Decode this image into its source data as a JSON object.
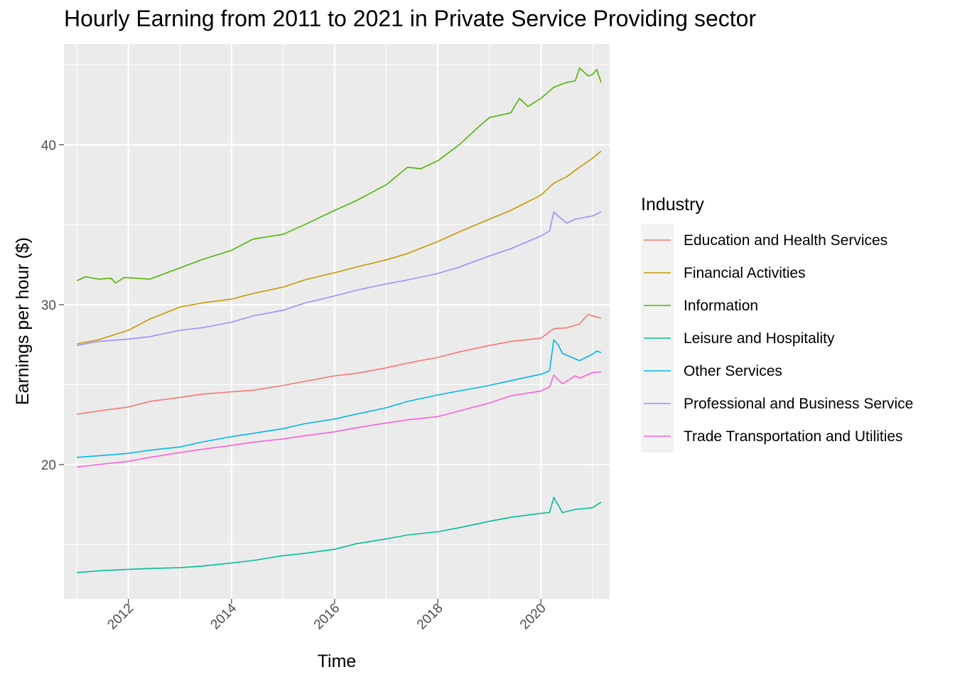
{
  "chart_data": {
    "type": "line",
    "title": "Hourly Earning from 2011 to 2021 in Private Service Providing sector",
    "xlabel": "Time",
    "ylabel": "Earnings per hour ($)",
    "xlim": [
      "2010-10",
      "2021-05"
    ],
    "ylim": [
      11.6,
      46.3
    ],
    "x_ticks": [
      "2012",
      "2014",
      "2016",
      "2018",
      "2020"
    ],
    "y_ticks": [
      "20",
      "30",
      "40"
    ],
    "grid": true,
    "legend": {
      "title": "Industry",
      "position": "right"
    },
    "series": [
      {
        "name": "Education and Health Services",
        "color": "#F8766D",
        "points": [
          [
            "2011-01",
            23.15
          ],
          [
            "2011-06",
            23.35
          ],
          [
            "2012-01",
            23.6
          ],
          [
            "2012-06",
            23.95
          ],
          [
            "2013-01",
            24.2
          ],
          [
            "2013-06",
            24.4
          ],
          [
            "2014-01",
            24.55
          ],
          [
            "2014-06",
            24.65
          ],
          [
            "2015-01",
            24.95
          ],
          [
            "2015-06",
            25.2
          ],
          [
            "2016-01",
            25.55
          ],
          [
            "2016-06",
            25.7
          ],
          [
            "2017-01",
            26.05
          ],
          [
            "2017-06",
            26.35
          ],
          [
            "2018-01",
            26.7
          ],
          [
            "2018-06",
            27.05
          ],
          [
            "2019-01",
            27.45
          ],
          [
            "2019-06",
            27.7
          ],
          [
            "2020-01",
            27.9
          ],
          [
            "2020-04",
            28.5
          ],
          [
            "2020-07",
            28.55
          ],
          [
            "2020-10",
            28.8
          ],
          [
            "2020-12",
            29.4
          ],
          [
            "2021-01",
            29.3
          ],
          [
            "2021-03",
            29.15
          ]
        ]
      },
      {
        "name": "Financial Activities",
        "color": "#C49A00",
        "points": [
          [
            "2011-01",
            27.55
          ],
          [
            "2011-06",
            27.8
          ],
          [
            "2012-01",
            28.4
          ],
          [
            "2012-06",
            29.1
          ],
          [
            "2013-01",
            29.85
          ],
          [
            "2013-06",
            30.1
          ],
          [
            "2014-01",
            30.35
          ],
          [
            "2014-06",
            30.7
          ],
          [
            "2015-01",
            31.1
          ],
          [
            "2015-06",
            31.55
          ],
          [
            "2016-01",
            32.0
          ],
          [
            "2016-06",
            32.35
          ],
          [
            "2017-01",
            32.8
          ],
          [
            "2017-06",
            33.2
          ],
          [
            "2018-01",
            33.95
          ],
          [
            "2018-06",
            34.55
          ],
          [
            "2019-01",
            35.35
          ],
          [
            "2019-06",
            35.9
          ],
          [
            "2020-01",
            36.85
          ],
          [
            "2020-04",
            37.6
          ],
          [
            "2020-07",
            38.0
          ],
          [
            "2020-10",
            38.6
          ],
          [
            "2021-01",
            39.15
          ],
          [
            "2021-03",
            39.6
          ]
        ]
      },
      {
        "name": "Information",
        "color": "#53B400",
        "points": [
          [
            "2011-01",
            31.5
          ],
          [
            "2011-03",
            31.75
          ],
          [
            "2011-06",
            31.6
          ],
          [
            "2011-09",
            31.65
          ],
          [
            "2011-10",
            31.35
          ],
          [
            "2011-12",
            31.7
          ],
          [
            "2012-06",
            31.6
          ],
          [
            "2013-01",
            32.3
          ],
          [
            "2013-06",
            32.8
          ],
          [
            "2014-01",
            33.4
          ],
          [
            "2014-06",
            34.1
          ],
          [
            "2015-01",
            34.4
          ],
          [
            "2015-06",
            35.0
          ],
          [
            "2016-01",
            35.9
          ],
          [
            "2016-06",
            36.5
          ],
          [
            "2017-01",
            37.5
          ],
          [
            "2017-06",
            38.6
          ],
          [
            "2017-09",
            38.5
          ],
          [
            "2018-01",
            39.0
          ],
          [
            "2018-06",
            40.0
          ],
          [
            "2018-10",
            41.0
          ],
          [
            "2019-01",
            41.7
          ],
          [
            "2019-06",
            42.0
          ],
          [
            "2019-08",
            42.9
          ],
          [
            "2019-10",
            42.4
          ],
          [
            "2020-01",
            42.9
          ],
          [
            "2020-04",
            43.6
          ],
          [
            "2020-07",
            43.9
          ],
          [
            "2020-09",
            44.0
          ],
          [
            "2020-10",
            44.8
          ],
          [
            "2020-12",
            44.3
          ],
          [
            "2021-01",
            44.4
          ],
          [
            "2021-02",
            44.7
          ],
          [
            "2021-03",
            43.9
          ]
        ]
      },
      {
        "name": "Leisure and Hospitality",
        "color": "#00C094",
        "points": [
          [
            "2011-01",
            13.25
          ],
          [
            "2011-06",
            13.35
          ],
          [
            "2012-01",
            13.45
          ],
          [
            "2012-06",
            13.5
          ],
          [
            "2013-01",
            13.55
          ],
          [
            "2013-06",
            13.65
          ],
          [
            "2014-01",
            13.85
          ],
          [
            "2014-06",
            14.0
          ],
          [
            "2015-01",
            14.3
          ],
          [
            "2015-06",
            14.45
          ],
          [
            "2016-01",
            14.7
          ],
          [
            "2016-06",
            15.05
          ],
          [
            "2017-01",
            15.35
          ],
          [
            "2017-06",
            15.6
          ],
          [
            "2018-01",
            15.8
          ],
          [
            "2018-06",
            16.05
          ],
          [
            "2019-01",
            16.45
          ],
          [
            "2019-06",
            16.7
          ],
          [
            "2020-01",
            16.95
          ],
          [
            "2020-03",
            17.0
          ],
          [
            "2020-04",
            17.95
          ],
          [
            "2020-06",
            17.0
          ],
          [
            "2020-09",
            17.2
          ],
          [
            "2021-01",
            17.3
          ],
          [
            "2021-03",
            17.65
          ]
        ]
      },
      {
        "name": "Other Services",
        "color": "#00B6EB",
        "points": [
          [
            "2011-01",
            20.45
          ],
          [
            "2011-06",
            20.55
          ],
          [
            "2012-01",
            20.7
          ],
          [
            "2012-06",
            20.9
          ],
          [
            "2013-01",
            21.1
          ],
          [
            "2013-06",
            21.4
          ],
          [
            "2014-01",
            21.75
          ],
          [
            "2014-06",
            21.95
          ],
          [
            "2015-01",
            22.25
          ],
          [
            "2015-06",
            22.55
          ],
          [
            "2016-01",
            22.85
          ],
          [
            "2016-06",
            23.15
          ],
          [
            "2017-01",
            23.55
          ],
          [
            "2017-06",
            23.95
          ],
          [
            "2018-01",
            24.35
          ],
          [
            "2018-06",
            24.6
          ],
          [
            "2019-01",
            24.95
          ],
          [
            "2019-06",
            25.25
          ],
          [
            "2020-01",
            25.65
          ],
          [
            "2020-03",
            25.85
          ],
          [
            "2020-04",
            27.8
          ],
          [
            "2020-05",
            27.5
          ],
          [
            "2020-06",
            26.95
          ],
          [
            "2020-10",
            26.5
          ],
          [
            "2021-01",
            26.9
          ],
          [
            "2021-02",
            27.1
          ],
          [
            "2021-03",
            27.0
          ]
        ]
      },
      {
        "name": "Professional and Business Service",
        "color": "#A58AFF",
        "points": [
          [
            "2011-01",
            27.45
          ],
          [
            "2011-06",
            27.7
          ],
          [
            "2012-01",
            27.85
          ],
          [
            "2012-06",
            28.0
          ],
          [
            "2013-01",
            28.4
          ],
          [
            "2013-06",
            28.55
          ],
          [
            "2014-01",
            28.9
          ],
          [
            "2014-06",
            29.3
          ],
          [
            "2015-01",
            29.65
          ],
          [
            "2015-06",
            30.1
          ],
          [
            "2016-01",
            30.55
          ],
          [
            "2016-06",
            30.9
          ],
          [
            "2017-01",
            31.3
          ],
          [
            "2017-06",
            31.55
          ],
          [
            "2018-01",
            31.95
          ],
          [
            "2018-06",
            32.35
          ],
          [
            "2019-01",
            33.05
          ],
          [
            "2019-06",
            33.5
          ],
          [
            "2020-01",
            34.3
          ],
          [
            "2020-03",
            34.6
          ],
          [
            "2020-04",
            35.8
          ],
          [
            "2020-05",
            35.55
          ],
          [
            "2020-07",
            35.1
          ],
          [
            "2020-09",
            35.35
          ],
          [
            "2021-01",
            35.55
          ],
          [
            "2021-03",
            35.8
          ]
        ]
      },
      {
        "name": "Trade Transportation and Utilities",
        "color": "#FB61D7",
        "points": [
          [
            "2011-01",
            19.85
          ],
          [
            "2011-06",
            20.0
          ],
          [
            "2012-01",
            20.2
          ],
          [
            "2012-06",
            20.45
          ],
          [
            "2013-01",
            20.75
          ],
          [
            "2013-06",
            20.95
          ],
          [
            "2014-01",
            21.2
          ],
          [
            "2014-06",
            21.4
          ],
          [
            "2015-01",
            21.6
          ],
          [
            "2015-06",
            21.8
          ],
          [
            "2016-01",
            22.05
          ],
          [
            "2016-06",
            22.3
          ],
          [
            "2017-01",
            22.6
          ],
          [
            "2017-06",
            22.8
          ],
          [
            "2018-01",
            23.0
          ],
          [
            "2018-06",
            23.35
          ],
          [
            "2019-01",
            23.85
          ],
          [
            "2019-06",
            24.3
          ],
          [
            "2020-01",
            24.6
          ],
          [
            "2020-03",
            24.85
          ],
          [
            "2020-04",
            25.6
          ],
          [
            "2020-06",
            25.05
          ],
          [
            "2020-09",
            25.55
          ],
          [
            "2020-10",
            25.4
          ],
          [
            "2021-01",
            25.75
          ],
          [
            "2021-03",
            25.8
          ]
        ]
      }
    ]
  }
}
